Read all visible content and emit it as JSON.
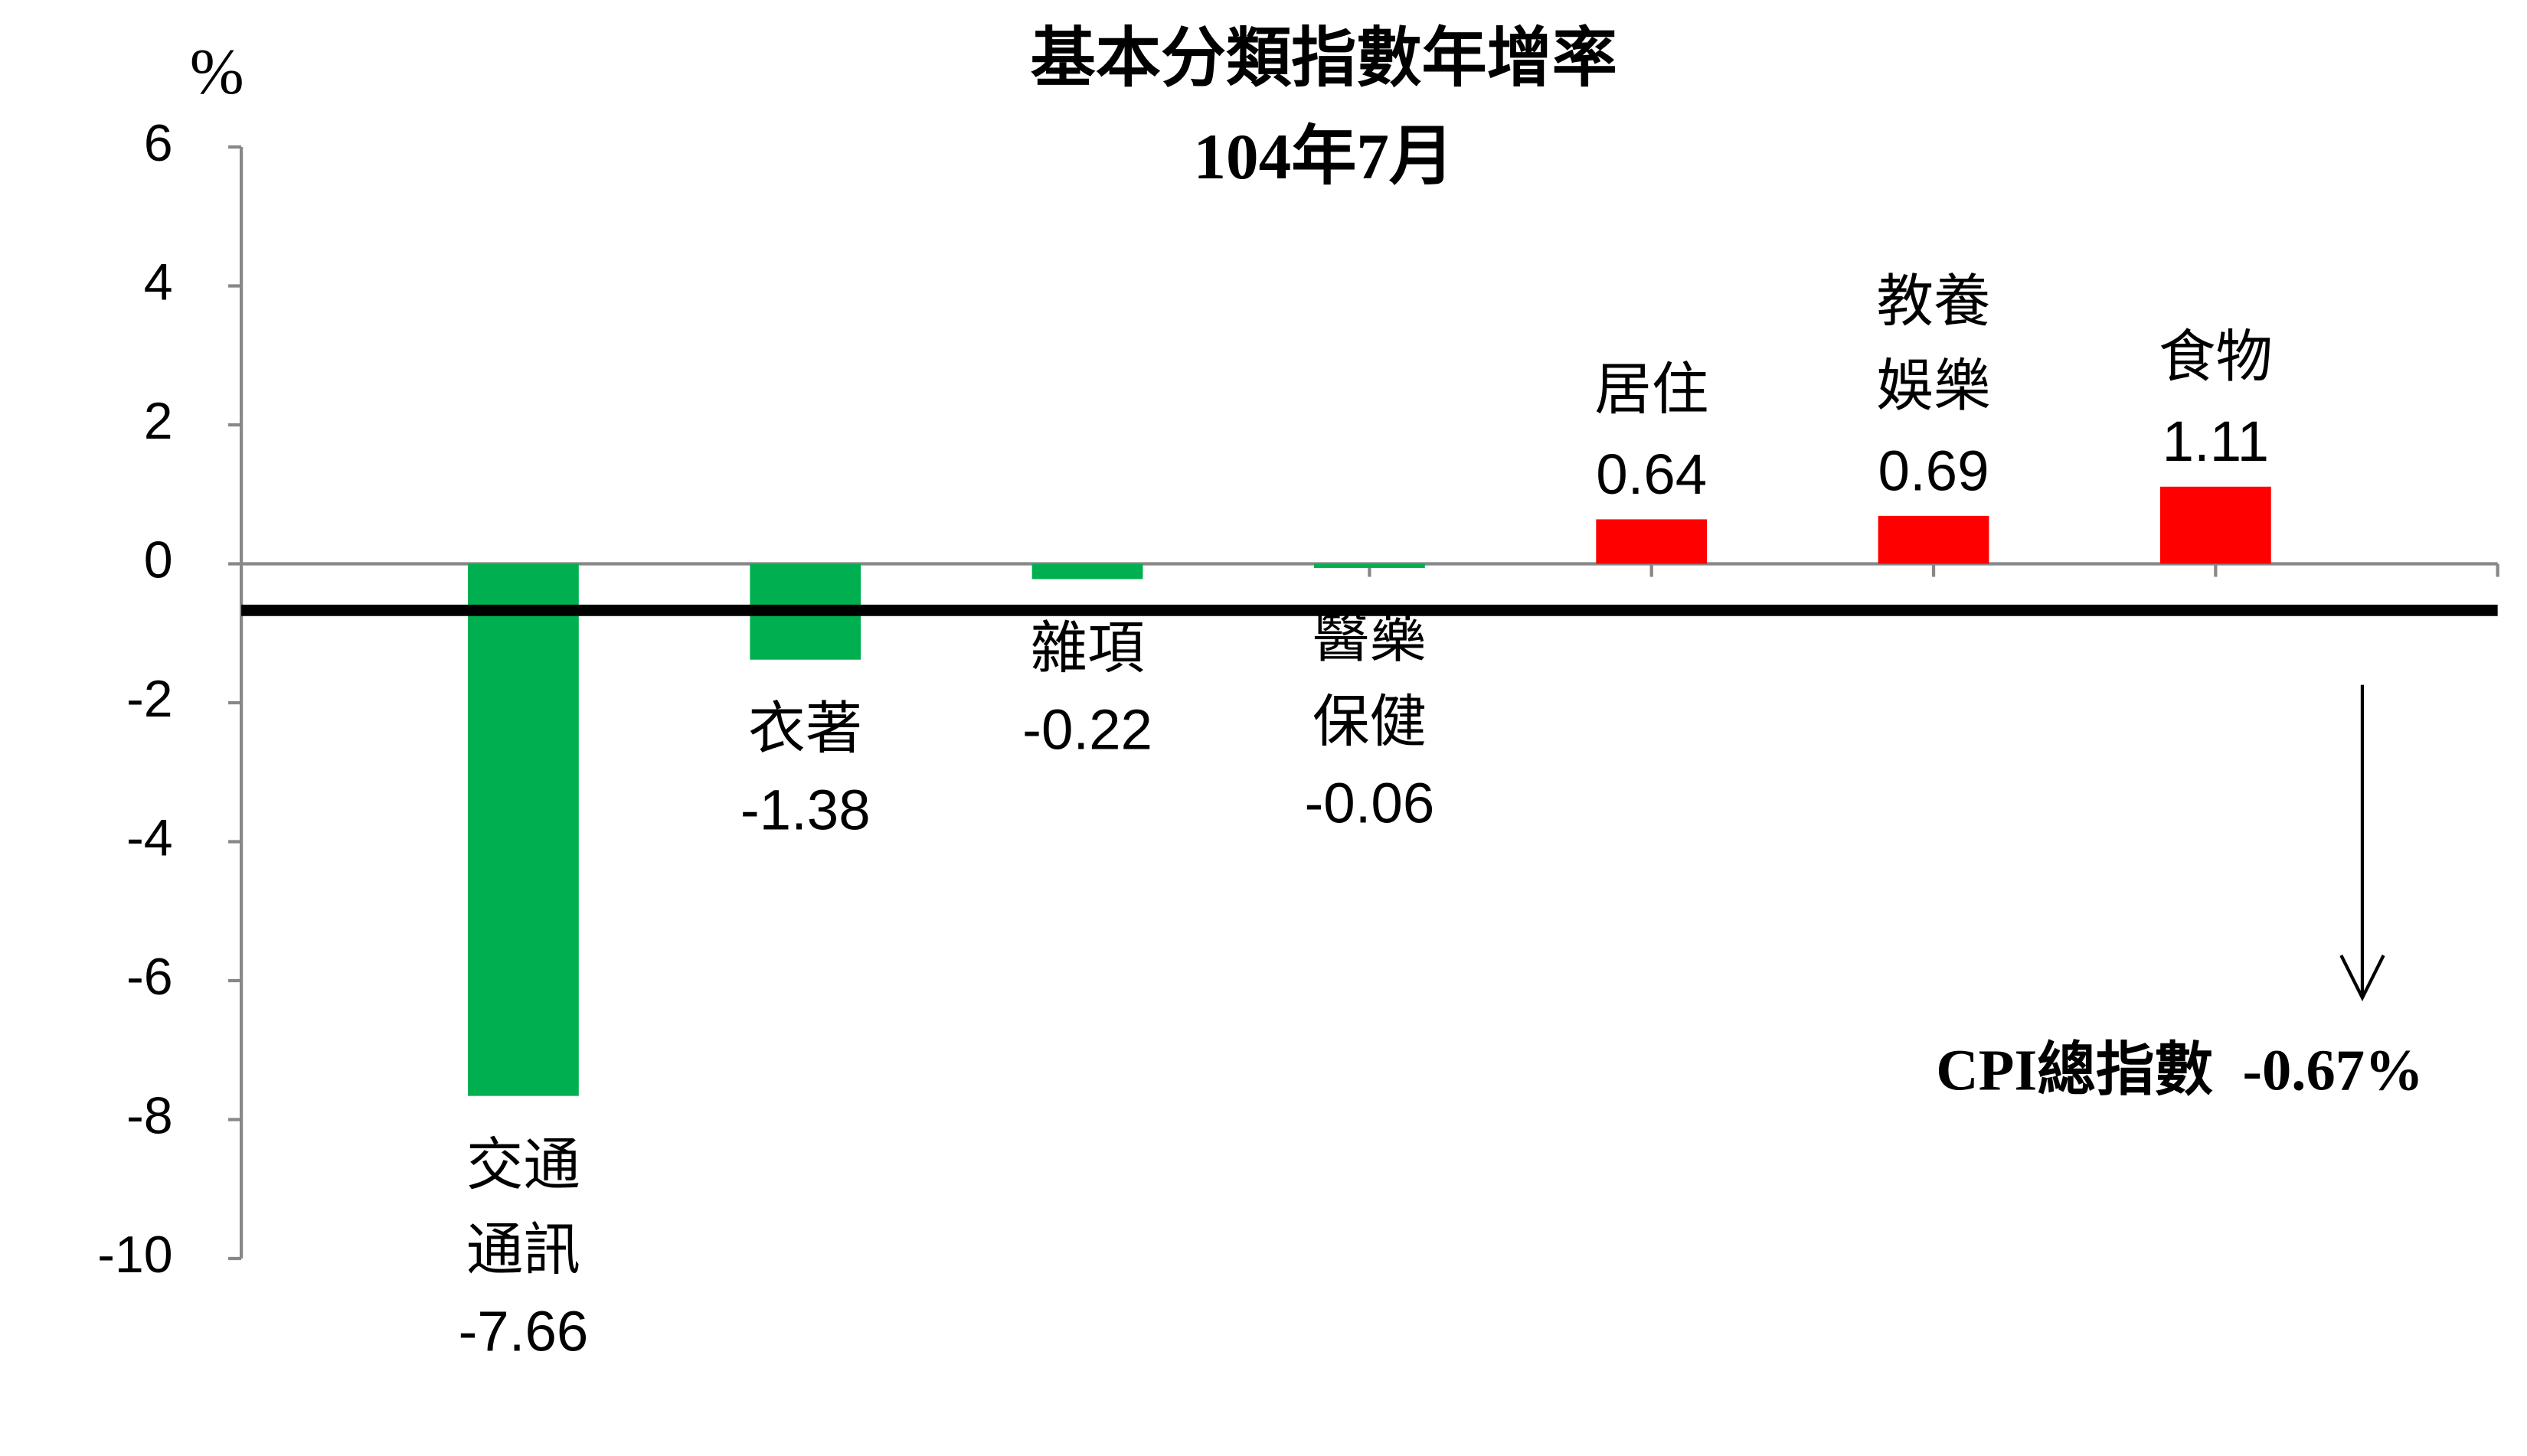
{
  "chart_data": {
    "type": "bar",
    "title": [
      "基本分類指數年增率",
      "104年7月"
    ],
    "y_unit": "%",
    "categories": [
      [
        "交通",
        "通訊"
      ],
      [
        "衣著"
      ],
      [
        "雜項"
      ],
      [
        "醫藥",
        "保健"
      ],
      [
        "居住"
      ],
      [
        "教養",
        "娛樂"
      ],
      [
        "食物"
      ]
    ],
    "values": [
      -7.66,
      -1.38,
      -0.22,
      -0.06,
      0.64,
      0.69,
      1.11
    ],
    "colors": [
      "#00b050",
      "#00b050",
      "#00b050",
      "#00b050",
      "#ff0000",
      "#ff0000",
      "#ff0000"
    ],
    "ylim": [
      -10,
      6
    ],
    "yticks": [
      -10,
      -8,
      -6,
      -4,
      -2,
      0,
      2,
      4,
      6
    ],
    "grid": false,
    "reference_line": {
      "label": "CPI總指數",
      "value": -0.67,
      "value_label": "-0.67%",
      "color": "#000000"
    }
  }
}
